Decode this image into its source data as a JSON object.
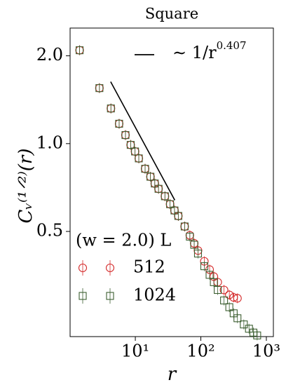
{
  "chart_data": {
    "type": "scatter",
    "title": "Square",
    "x_label": "r",
    "y_label": "Cᵥ⁽¹ᐟ²⁾(r)",
    "log_x": true,
    "log_y": true,
    "xlim": [
      1.01,
      1280
    ],
    "ylim": [
      0.218,
      2.49
    ],
    "xticks": [
      {
        "value": 10,
        "label": "10¹"
      },
      {
        "value": 100,
        "label": "10²"
      },
      {
        "value": 1000,
        "label": "10³"
      }
    ],
    "yticks": [
      {
        "value": 0.5,
        "label": "0.5"
      },
      {
        "value": 1.0,
        "label": "1.0"
      },
      {
        "value": 2.0,
        "label": "2.0"
      }
    ],
    "legend_title": "(w = 2.0) L",
    "series": [
      {
        "name": "512",
        "color": "#d42a2a",
        "marker": "circle",
        "x": [
          1.41,
          2.83,
          4.24,
          5.66,
          7.07,
          8.49,
          9.9,
          11.3,
          14.1,
          17.0,
          19.8,
          22.6,
          28.3,
          33.9,
          39.6,
          45.3,
          56.6,
          67.9,
          79.2,
          90.5,
          113,
          136,
          158,
          181,
          226,
          272,
          317,
          362
        ],
        "values": [
          2.09,
          1.55,
          1.32,
          1.17,
          1.07,
          0.99,
          0.94,
          0.89,
          0.82,
          0.77,
          0.73,
          0.7,
          0.66,
          0.62,
          0.59,
          0.565,
          0.52,
          0.485,
          0.455,
          0.43,
          0.395,
          0.37,
          0.35,
          0.335,
          0.315,
          0.303,
          0.297,
          0.295
        ]
      },
      {
        "name": "1024",
        "color": "#3d5f32",
        "marker": "square",
        "x": [
          1.41,
          2.83,
          4.24,
          5.66,
          7.07,
          8.49,
          9.9,
          11.3,
          14.1,
          17.0,
          19.8,
          22.6,
          28.3,
          33.9,
          39.6,
          45.3,
          56.6,
          67.9,
          79.2,
          90.5,
          113,
          136,
          158,
          181,
          226,
          272,
          317,
          362,
          453,
          543,
          634,
          724
        ],
        "values": [
          2.09,
          1.55,
          1.32,
          1.17,
          1.07,
          0.99,
          0.94,
          0.89,
          0.82,
          0.77,
          0.73,
          0.7,
          0.66,
          0.62,
          0.59,
          0.565,
          0.52,
          0.48,
          0.45,
          0.42,
          0.38,
          0.355,
          0.335,
          0.315,
          0.29,
          0.275,
          0.262,
          0.252,
          0.24,
          0.232,
          0.225,
          0.22
        ]
      },
      {
        "name": "∼ 1/r",
        "exponent": 0.407,
        "color": "#000000",
        "marker": "line",
        "x": [
          4.2,
          40
        ],
        "values": [
          1.63,
          0.64
        ]
      }
    ]
  }
}
